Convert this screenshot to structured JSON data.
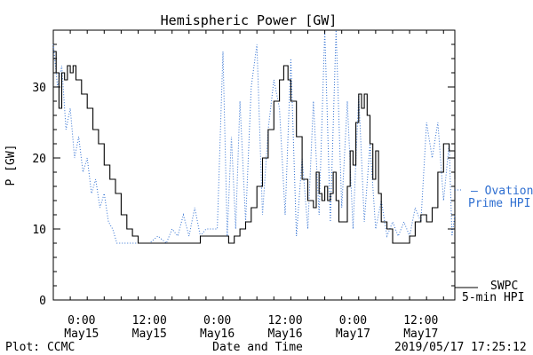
{
  "chart_data": {
    "type": "line",
    "title": "Hemispheric Power [GW]",
    "xlabel": "Date and Time",
    "ylabel": "P [GW]",
    "ylim": [
      0,
      38
    ],
    "y_ticks": [
      0,
      10,
      20,
      30
    ],
    "x_range": [
      "2019-05-14 19:00",
      "2019-05-17 18:00"
    ],
    "x_ticks": [
      {
        "time": "2019-05-15 00:00",
        "line1": "0:00",
        "line2": "May15"
      },
      {
        "time": "2019-05-15 12:00",
        "line1": "12:00",
        "line2": "May15"
      },
      {
        "time": "2019-05-16 00:00",
        "line1": "0:00",
        "line2": "May16"
      },
      {
        "time": "2019-05-16 12:00",
        "line1": "12:00",
        "line2": "May16"
      },
      {
        "time": "2019-05-17 00:00",
        "line1": "0:00",
        "line2": "May17"
      },
      {
        "time": "2019-05-17 12:00",
        "line1": "12:00",
        "line2": "May17"
      }
    ],
    "grid": false,
    "legend_position": "right",
    "series": [
      {
        "name": "Ovation Prime HPI",
        "legend_line1": "– Ovation",
        "legend_line2": "Prime HPI",
        "color": "#2f6fd1",
        "style": "dotted",
        "points": [
          [
            "2019-05-14 19:00",
            36
          ],
          [
            "2019-05-14 19:45",
            30
          ],
          [
            "2019-05-14 20:30",
            33
          ],
          [
            "2019-05-14 21:15",
            24
          ],
          [
            "2019-05-14 22:00",
            27
          ],
          [
            "2019-05-14 22:45",
            20
          ],
          [
            "2019-05-14 23:30",
            23
          ],
          [
            "2019-05-15 00:15",
            18
          ],
          [
            "2019-05-15 01:00",
            20
          ],
          [
            "2019-05-15 01:45",
            15
          ],
          [
            "2019-05-15 02:30",
            17
          ],
          [
            "2019-05-15 03:15",
            13
          ],
          [
            "2019-05-15 04:00",
            15
          ],
          [
            "2019-05-15 04:45",
            11
          ],
          [
            "2019-05-15 05:30",
            10
          ],
          [
            "2019-05-15 06:15",
            8
          ],
          [
            "2019-05-15 08:00",
            8
          ],
          [
            "2019-05-15 10:00",
            8
          ],
          [
            "2019-05-15 12:00",
            8
          ],
          [
            "2019-05-15 13:30",
            9
          ],
          [
            "2019-05-15 15:00",
            8
          ],
          [
            "2019-05-15 16:00",
            10
          ],
          [
            "2019-05-15 17:00",
            9
          ],
          [
            "2019-05-15 18:00",
            12
          ],
          [
            "2019-05-15 19:00",
            9
          ],
          [
            "2019-05-15 20:00",
            13
          ],
          [
            "2019-05-15 21:00",
            9
          ],
          [
            "2019-05-15 22:00",
            10
          ],
          [
            "2019-05-16 00:00",
            10
          ],
          [
            "2019-05-16 01:00",
            35
          ],
          [
            "2019-05-16 01:45",
            9
          ],
          [
            "2019-05-16 02:30",
            23
          ],
          [
            "2019-05-16 03:15",
            10
          ],
          [
            "2019-05-16 04:00",
            28
          ],
          [
            "2019-05-16 05:00",
            11
          ],
          [
            "2019-05-16 06:00",
            30
          ],
          [
            "2019-05-16 07:00",
            36
          ],
          [
            "2019-05-16 08:00",
            12
          ],
          [
            "2019-05-16 09:00",
            24
          ],
          [
            "2019-05-16 10:00",
            31
          ],
          [
            "2019-05-16 11:00",
            27
          ],
          [
            "2019-05-16 12:00",
            12
          ],
          [
            "2019-05-16 13:00",
            34
          ],
          [
            "2019-05-16 14:00",
            9
          ],
          [
            "2019-05-16 15:00",
            20
          ],
          [
            "2019-05-16 16:00",
            10
          ],
          [
            "2019-05-16 17:00",
            28
          ],
          [
            "2019-05-16 18:00",
            12
          ],
          [
            "2019-05-16 19:00",
            38
          ],
          [
            "2019-05-16 20:00",
            11
          ],
          [
            "2019-05-16 21:00",
            38
          ],
          [
            "2019-05-16 22:00",
            13
          ],
          [
            "2019-05-16 23:00",
            28
          ],
          [
            "2019-05-17 00:00",
            10
          ],
          [
            "2019-05-17 01:00",
            29
          ],
          [
            "2019-05-17 02:00",
            11
          ],
          [
            "2019-05-17 03:00",
            22
          ],
          [
            "2019-05-17 04:00",
            10
          ],
          [
            "2019-05-17 05:00",
            14
          ],
          [
            "2019-05-17 06:00",
            9
          ],
          [
            "2019-05-17 07:00",
            11
          ],
          [
            "2019-05-17 08:00",
            9
          ],
          [
            "2019-05-17 09:00",
            11
          ],
          [
            "2019-05-17 10:00",
            9
          ],
          [
            "2019-05-17 11:00",
            13
          ],
          [
            "2019-05-17 12:00",
            11
          ],
          [
            "2019-05-17 13:00",
            25
          ],
          [
            "2019-05-17 14:00",
            20
          ],
          [
            "2019-05-17 15:00",
            25
          ],
          [
            "2019-05-17 16:00",
            14
          ],
          [
            "2019-05-17 17:00",
            22
          ],
          [
            "2019-05-17 17:30",
            9
          ],
          [
            "2019-05-17 18:00",
            12
          ]
        ]
      },
      {
        "name": "SWPC 5-min HPI",
        "legend_line1": "SWPC",
        "legend_line2": "5-min HPI",
        "color": "#000000",
        "style": "solid",
        "points": [
          [
            "2019-05-14 19:00",
            35
          ],
          [
            "2019-05-14 19:30",
            32
          ],
          [
            "2019-05-14 20:00",
            27
          ],
          [
            "2019-05-14 20:30",
            32
          ],
          [
            "2019-05-14 21:00",
            31
          ],
          [
            "2019-05-14 21:30",
            33
          ],
          [
            "2019-05-14 22:00",
            32
          ],
          [
            "2019-05-14 22:30",
            33
          ],
          [
            "2019-05-14 23:00",
            31
          ],
          [
            "2019-05-15 00:00",
            29
          ],
          [
            "2019-05-15 01:00",
            27
          ],
          [
            "2019-05-15 02:00",
            24
          ],
          [
            "2019-05-15 03:00",
            22
          ],
          [
            "2019-05-15 04:00",
            19
          ],
          [
            "2019-05-15 05:00",
            17
          ],
          [
            "2019-05-15 06:00",
            15
          ],
          [
            "2019-05-15 07:00",
            12
          ],
          [
            "2019-05-15 08:00",
            10
          ],
          [
            "2019-05-15 09:00",
            9
          ],
          [
            "2019-05-15 10:00",
            8
          ],
          [
            "2019-05-15 12:00",
            8
          ],
          [
            "2019-05-15 14:00",
            8
          ],
          [
            "2019-05-15 16:00",
            8
          ],
          [
            "2019-05-15 18:00",
            8
          ],
          [
            "2019-05-15 20:00",
            8
          ],
          [
            "2019-05-15 21:00",
            9
          ],
          [
            "2019-05-15 23:00",
            9
          ],
          [
            "2019-05-16 01:00",
            9
          ],
          [
            "2019-05-16 02:00",
            8
          ],
          [
            "2019-05-16 03:00",
            9
          ],
          [
            "2019-05-16 04:00",
            10
          ],
          [
            "2019-05-16 05:00",
            11
          ],
          [
            "2019-05-16 06:00",
            13
          ],
          [
            "2019-05-16 07:00",
            16
          ],
          [
            "2019-05-16 08:00",
            20
          ],
          [
            "2019-05-16 09:00",
            24
          ],
          [
            "2019-05-16 10:00",
            28
          ],
          [
            "2019-05-16 11:00",
            31
          ],
          [
            "2019-05-16 11:45",
            33
          ],
          [
            "2019-05-16 12:30",
            31
          ],
          [
            "2019-05-16 13:00",
            28
          ],
          [
            "2019-05-16 14:00",
            23
          ],
          [
            "2019-05-16 15:00",
            17
          ],
          [
            "2019-05-16 16:00",
            14
          ],
          [
            "2019-05-16 17:00",
            13
          ],
          [
            "2019-05-16 17:30",
            18
          ],
          [
            "2019-05-16 18:00",
            15
          ],
          [
            "2019-05-16 18:30",
            14
          ],
          [
            "2019-05-16 19:00",
            16
          ],
          [
            "2019-05-16 19:30",
            14
          ],
          [
            "2019-05-16 20:00",
            15
          ],
          [
            "2019-05-16 20:30",
            18
          ],
          [
            "2019-05-16 21:00",
            14
          ],
          [
            "2019-05-16 21:30",
            11
          ],
          [
            "2019-05-16 22:30",
            11
          ],
          [
            "2019-05-16 23:00",
            16
          ],
          [
            "2019-05-16 23:30",
            21
          ],
          [
            "2019-05-17 00:00",
            19
          ],
          [
            "2019-05-17 00:30",
            25
          ],
          [
            "2019-05-17 01:00",
            29
          ],
          [
            "2019-05-17 01:30",
            27
          ],
          [
            "2019-05-17 02:00",
            29
          ],
          [
            "2019-05-17 02:30",
            26
          ],
          [
            "2019-05-17 03:00",
            22
          ],
          [
            "2019-05-17 03:30",
            17
          ],
          [
            "2019-05-17 04:00",
            21
          ],
          [
            "2019-05-17 04:30",
            15
          ],
          [
            "2019-05-17 05:00",
            11
          ],
          [
            "2019-05-17 06:00",
            10
          ],
          [
            "2019-05-17 07:00",
            8
          ],
          [
            "2019-05-17 09:00",
            8
          ],
          [
            "2019-05-17 10:00",
            9
          ],
          [
            "2019-05-17 11:00",
            11
          ],
          [
            "2019-05-17 12:00",
            12
          ],
          [
            "2019-05-17 13:00",
            11
          ],
          [
            "2019-05-17 14:00",
            13
          ],
          [
            "2019-05-17 15:00",
            18
          ],
          [
            "2019-05-17 16:00",
            22
          ],
          [
            "2019-05-17 17:00",
            21
          ],
          [
            "2019-05-17 18:00",
            17
          ]
        ]
      }
    ]
  },
  "footer": {
    "left": "Plot: CCMC",
    "right": "2019/05/17 17:25:12"
  }
}
